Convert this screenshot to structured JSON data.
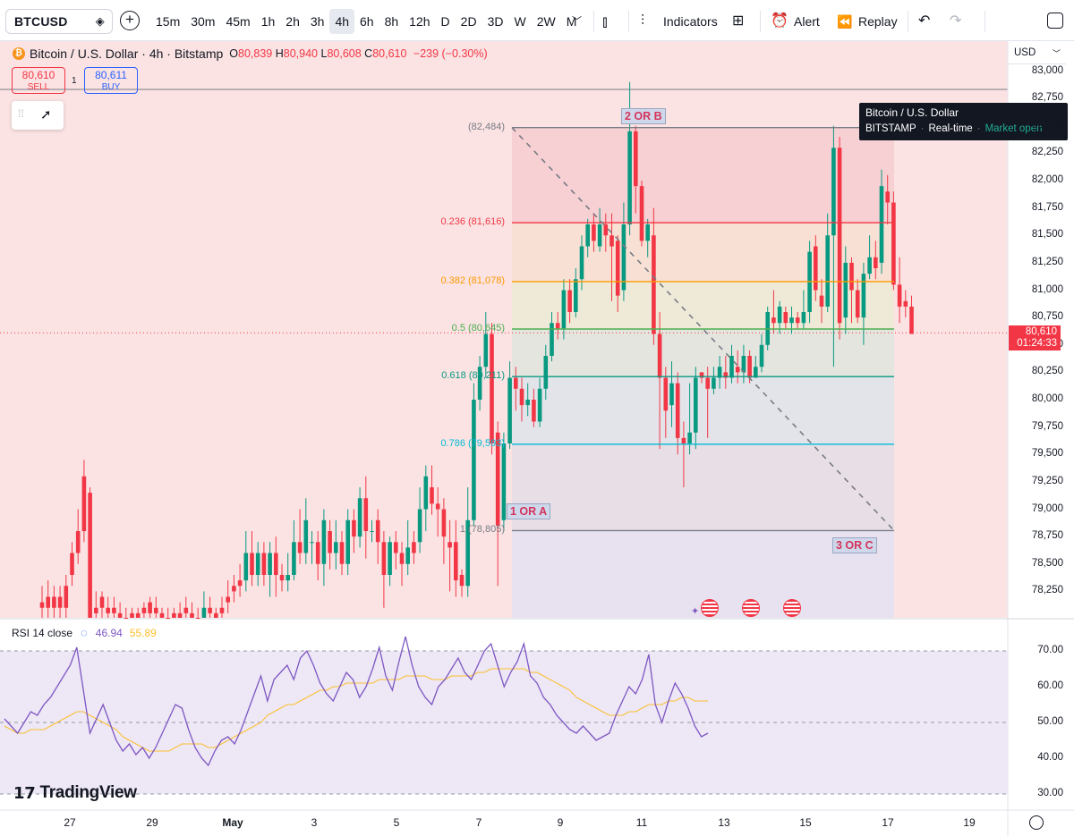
{
  "toolbar": {
    "symbol": "BTCUSD",
    "intervals": [
      "15m",
      "30m",
      "45m",
      "1h",
      "2h",
      "3h",
      "4h",
      "6h",
      "8h",
      "12h",
      "D",
      "2D",
      "3D",
      "W",
      "2W",
      "M"
    ],
    "active_interval": "4h",
    "indicators_label": "Indicators",
    "alert_label": "Alert",
    "replay_label": "Replay"
  },
  "legend": {
    "title": "Bitcoin / U.S. Dollar · 4h · Bitstamp",
    "open_key": "O",
    "open": "80,839",
    "high_key": "H",
    "high": "80,940",
    "low_key": "L",
    "low": "80,608",
    "close_key": "C",
    "close": "80,610",
    "change": "−239 (−0.30%)",
    "sell_price": "80,610",
    "sell_label": "SELL",
    "buy_price": "80,611",
    "buy_label": "BUY",
    "spread": "1"
  },
  "tooltip": {
    "name": "Bitcoin / U.S. Dollar",
    "exchange": "BITSTAMP",
    "realtime": "Real-time",
    "status": "Market open"
  },
  "price_axis": {
    "currency": "USD",
    "labels": [
      "83,000",
      "82,750",
      "82,500",
      "82,250",
      "82,000",
      "81,750",
      "81,500",
      "81,250",
      "81,000",
      "80,750",
      "80,500",
      "80,250",
      "80,000",
      "79,750",
      "79,500",
      "79,250",
      "79,000",
      "78,750",
      "78,500",
      "78,250"
    ],
    "last_price": "80,610",
    "countdown": "01:24:33"
  },
  "fib": {
    "levels": [
      {
        "label": "(82,484)",
        "color": "#787b86"
      },
      {
        "label": "0.236 (81,616)",
        "color": "#f23645"
      },
      {
        "label": "0.382 (81,078)",
        "color": "#ff9800"
      },
      {
        "label": "0.5 (80,645)",
        "color": "#4caf50"
      },
      {
        "label": "0.618 (80,211)",
        "color": "#089981"
      },
      {
        "label": "0.786 (79,593)",
        "color": "#00bcd4"
      },
      {
        "label": "1 (78,805)",
        "color": "#787b86"
      }
    ],
    "wave_b": "2 OR B",
    "wave_a": "1 OR A",
    "wave_c": "3 OR C"
  },
  "rsi": {
    "label": "RSI 14 close",
    "value": "46.94",
    "ma_value": "55.89",
    "axis": [
      "70.00",
      "60.00",
      "50.00",
      "40.00",
      "30.00"
    ],
    "line_color": "#7e57c2",
    "ma_color": "#fbc02d"
  },
  "time_axis": [
    "27",
    "29",
    "May",
    "3",
    "5",
    "7",
    "9",
    "11",
    "13",
    "15",
    "17",
    "19"
  ],
  "brand": "TradingView",
  "colors": {
    "up": "#089981",
    "down": "#f23645"
  },
  "chart_data": {
    "type": "candlestick",
    "interval": "4h",
    "y_range": [
      78000,
      83000
    ],
    "candles": [
      [
        78150,
        78100,
        77900,
        78300
      ],
      [
        78200,
        78100,
        78000,
        78350
      ],
      [
        78200,
        78100,
        77950,
        78300
      ],
      [
        78200,
        78100,
        78000,
        78300
      ],
      [
        78300,
        78100,
        78000,
        78400
      ],
      [
        78600,
        78400,
        78300,
        78700
      ],
      [
        78800,
        78600,
        78500,
        79000
      ],
      [
        79300,
        78800,
        78700,
        79450
      ],
      [
        79150,
        77800,
        77700,
        79200
      ],
      [
        78100,
        78050,
        77950,
        78250
      ],
      [
        78200,
        78100,
        78000,
        78250
      ],
      [
        78100,
        78050,
        77900,
        78200
      ],
      [
        78100,
        78050,
        77950,
        78200
      ],
      [
        78050,
        78000,
        77900,
        78150
      ],
      [
        78000,
        77950,
        77900,
        78100
      ],
      [
        78050,
        78000,
        77900,
        78100
      ],
      [
        78050,
        78000,
        77950,
        78100
      ],
      [
        78100,
        78050,
        77950,
        78150
      ],
      [
        78150,
        78050,
        78000,
        78200
      ],
      [
        78100,
        78050,
        78000,
        78200
      ],
      [
        78050,
        78000,
        77950,
        78100
      ],
      [
        78000,
        77950,
        77900,
        78100
      ],
      [
        78050,
        78000,
        77900,
        78100
      ],
      [
        78050,
        78000,
        77950,
        78150
      ],
      [
        78100,
        78050,
        77950,
        78200
      ],
      [
        78050,
        78000,
        77900,
        78150
      ],
      [
        78000,
        77950,
        77900,
        78100
      ],
      [
        78000,
        78100,
        77900,
        78250
      ],
      [
        78100,
        78050,
        78000,
        78200
      ],
      [
        78050,
        78000,
        77950,
        78100
      ],
      [
        78100,
        78050,
        77950,
        78200
      ],
      [
        78200,
        78150,
        78050,
        78350
      ],
      [
        78300,
        78250,
        78150,
        78400
      ],
      [
        78350,
        78300,
        78200,
        78500
      ],
      [
        78350,
        78600,
        78250,
        78800
      ],
      [
        78600,
        78400,
        78300,
        78800
      ],
      [
        78400,
        78600,
        78300,
        78700
      ],
      [
        78600,
        78400,
        78300,
        78700
      ],
      [
        78400,
        78600,
        78200,
        78700
      ],
      [
        78600,
        78400,
        78200,
        78750
      ],
      [
        78400,
        78350,
        78250,
        78500
      ],
      [
        78350,
        78400,
        78250,
        78600
      ],
      [
        78400,
        78700,
        78350,
        78900
      ],
      [
        78700,
        78600,
        78500,
        79000
      ],
      [
        78600,
        78900,
        78500,
        79100
      ],
      [
        78700,
        78700,
        78500,
        78800
      ],
      [
        78700,
        78500,
        78350,
        78800
      ],
      [
        78500,
        78900,
        78300,
        79000
      ],
      [
        78800,
        78600,
        78450,
        78900
      ],
      [
        78600,
        78700,
        78450,
        78900
      ],
      [
        78700,
        78500,
        78400,
        78800
      ],
      [
        78500,
        78900,
        78400,
        79000
      ],
      [
        78900,
        78750,
        78600,
        79000
      ],
      [
        78750,
        79100,
        78650,
        79200
      ],
      [
        79100,
        78800,
        78550,
        79300
      ],
      [
        78800,
        78800,
        78700,
        78900
      ],
      [
        78900,
        78700,
        78500,
        79000
      ],
      [
        78700,
        78400,
        78100,
        78800
      ],
      [
        78400,
        78700,
        78300,
        78750
      ],
      [
        78700,
        78600,
        78450,
        78800
      ],
      [
        78600,
        78500,
        78300,
        78700
      ],
      [
        78500,
        78650,
        78400,
        78900
      ],
      [
        78700,
        78600,
        78500,
        78800
      ],
      [
        78700,
        79000,
        78600,
        79200
      ],
      [
        79000,
        79300,
        78800,
        79400
      ],
      [
        79200,
        79050,
        78950,
        79400
      ],
      [
        79050,
        79000,
        78750,
        79200
      ],
      [
        79000,
        78750,
        78500,
        79100
      ],
      [
        78700,
        78650,
        78250,
        78900
      ],
      [
        78700,
        78350,
        78200,
        78900
      ],
      [
        78400,
        78300,
        78200,
        78450
      ],
      [
        78300,
        78900,
        78200,
        79200
      ],
      [
        78900,
        80000,
        78850,
        80150
      ],
      [
        80000,
        80300,
        79900,
        80400
      ],
      [
        80300,
        80600,
        80200,
        80800
      ],
      [
        80600,
        79600,
        79500,
        80700
      ],
      [
        79700,
        78850,
        78300,
        79800
      ],
      [
        78900,
        79600,
        78800,
        79700
      ],
      [
        79600,
        80200,
        79550,
        80350
      ],
      [
        80200,
        80100,
        79900,
        80300
      ],
      [
        80100,
        79950,
        79800,
        80200
      ],
      [
        79950,
        80000,
        79850,
        80150
      ],
      [
        80000,
        79800,
        79750,
        80100
      ],
      [
        79800,
        80100,
        79750,
        80200
      ],
      [
        80100,
        80400,
        80000,
        80500
      ],
      [
        80400,
        80700,
        80350,
        80800
      ],
      [
        80700,
        80650,
        80550,
        80800
      ],
      [
        80650,
        81000,
        80550,
        81100
      ],
      [
        81000,
        80800,
        80700,
        81100
      ],
      [
        80800,
        81100,
        80750,
        81200
      ],
      [
        81100,
        81400,
        81000,
        81500
      ],
      [
        81400,
        81600,
        81300,
        81650
      ],
      [
        81600,
        81450,
        81350,
        81700
      ],
      [
        81400,
        81600,
        81350,
        81750
      ],
      [
        81600,
        81500,
        81350,
        81700
      ],
      [
        81500,
        81400,
        80900,
        81700
      ],
      [
        81450,
        80950,
        80800,
        81500
      ],
      [
        81000,
        81600,
        80900,
        81800
      ],
      [
        81600,
        82450,
        81500,
        82900
      ],
      [
        82450,
        81950,
        81700,
        82500
      ],
      [
        81950,
        81450,
        81400,
        82000
      ],
      [
        81450,
        81600,
        81300,
        81650
      ],
      [
        81500,
        80600,
        80500,
        81750
      ],
      [
        80600,
        80200,
        79550,
        80800
      ],
      [
        80200,
        79900,
        79650,
        80300
      ],
      [
        79950,
        80150,
        79750,
        80350
      ],
      [
        80150,
        79650,
        79500,
        80250
      ],
      [
        79650,
        79600,
        79200,
        79800
      ],
      [
        79600,
        79700,
        79500,
        80150
      ],
      [
        79700,
        80200,
        79550,
        80300
      ],
      [
        80250,
        80200,
        80150,
        80250
      ],
      [
        80200,
        80100,
        79650,
        80300
      ],
      [
        80100,
        80200,
        80050,
        80300
      ],
      [
        80200,
        80300,
        80100,
        80400
      ],
      [
        80250,
        80200,
        80100,
        80400
      ],
      [
        80200,
        80400,
        80150,
        80500
      ],
      [
        80300,
        80250,
        80150,
        80450
      ],
      [
        80250,
        80400,
        80150,
        80500
      ],
      [
        80400,
        80200,
        80150,
        80450
      ],
      [
        80200,
        80300,
        80200,
        80400
      ],
      [
        80300,
        80500,
        80250,
        80600
      ],
      [
        80500,
        80800,
        80450,
        80850
      ],
      [
        80750,
        80700,
        80600,
        81000
      ],
      [
        80700,
        80850,
        80600,
        80900
      ],
      [
        80800,
        80700,
        80650,
        80850
      ],
      [
        80700,
        80750,
        80600,
        80850
      ],
      [
        80750,
        80700,
        80650,
        80800
      ],
      [
        80700,
        80800,
        80650,
        81000
      ],
      [
        80800,
        81350,
        80700,
        81450
      ],
      [
        81400,
        81000,
        80900,
        81500
      ],
      [
        80950,
        80850,
        80700,
        81100
      ],
      [
        80850,
        81500,
        80800,
        81700
      ],
      [
        81500,
        82300,
        80300,
        82500
      ],
      [
        82300,
        80700,
        80550,
        82400
      ],
      [
        80750,
        81250,
        80600,
        81400
      ],
      [
        81250,
        81000,
        80700,
        81300
      ],
      [
        81000,
        80750,
        80700,
        81100
      ],
      [
        80750,
        81150,
        80500,
        81250
      ],
      [
        81150,
        81300,
        81100,
        81500
      ],
      [
        81300,
        81200,
        81100,
        81450
      ],
      [
        81250,
        81950,
        81150,
        82100
      ],
      [
        81900,
        81800,
        81600,
        82050
      ],
      [
        81800,
        81050,
        81000,
        81900
      ],
      [
        81050,
        80850,
        80700,
        81300
      ],
      [
        80900,
        80850,
        80750,
        81000
      ],
      [
        80850,
        80600,
        80600,
        80950
      ]
    ],
    "rsi_values": [
      51,
      49,
      47,
      50,
      53,
      52,
      55,
      57,
      60,
      63,
      66,
      71,
      59,
      47,
      51,
      55,
      50,
      45,
      42,
      44,
      41,
      43,
      40,
      43,
      47,
      51,
      55,
      54,
      48,
      43,
      40,
      38,
      42,
      45,
      46,
      44,
      48,
      53,
      58,
      63,
      56,
      62,
      64,
      66,
      62,
      68,
      70,
      66,
      61,
      58,
      56,
      60,
      64,
      62,
      57,
      60,
      65,
      71,
      63,
      59,
      67,
      74,
      66,
      60,
      57,
      55,
      60,
      62,
      65,
      68,
      64,
      62,
      66,
      70,
      72,
      66,
      60,
      64,
      67,
      72,
      63,
      61,
      57,
      55,
      52,
      50,
      48,
      47,
      49,
      47,
      45,
      46,
      47,
      52,
      56,
      60,
      58,
      62,
      69,
      55,
      50,
      56,
      61,
      58,
      54,
      49,
      46,
      47
    ],
    "rsi_ma": [
      49,
      48,
      47,
      47,
      48,
      48,
      48,
      49,
      50,
      51,
      52,
      53,
      53,
      52,
      51,
      50,
      49,
      48,
      46,
      45,
      44,
      43,
      42,
      42,
      42,
      42,
      43,
      44,
      44,
      44,
      44,
      43,
      43,
      44,
      45,
      46,
      47,
      48,
      49,
      50,
      52,
      53,
      54,
      55,
      55,
      56,
      57,
      58,
      59,
      59,
      60,
      60,
      61,
      61,
      61,
      61,
      61,
      62,
      62,
      62,
      62,
      63,
      63,
      63,
      63,
      62,
      62,
      62,
      63,
      63,
      63,
      63,
      64,
      64,
      65,
      65,
      65,
      65,
      65,
      65,
      64,
      64,
      63,
      62,
      61,
      60,
      59,
      57,
      56,
      55,
      54,
      53,
      52,
      52,
      52,
      53,
      53,
      54,
      55,
      55,
      55,
      56,
      56,
      57,
      57,
      56,
      56,
      56
    ]
  }
}
